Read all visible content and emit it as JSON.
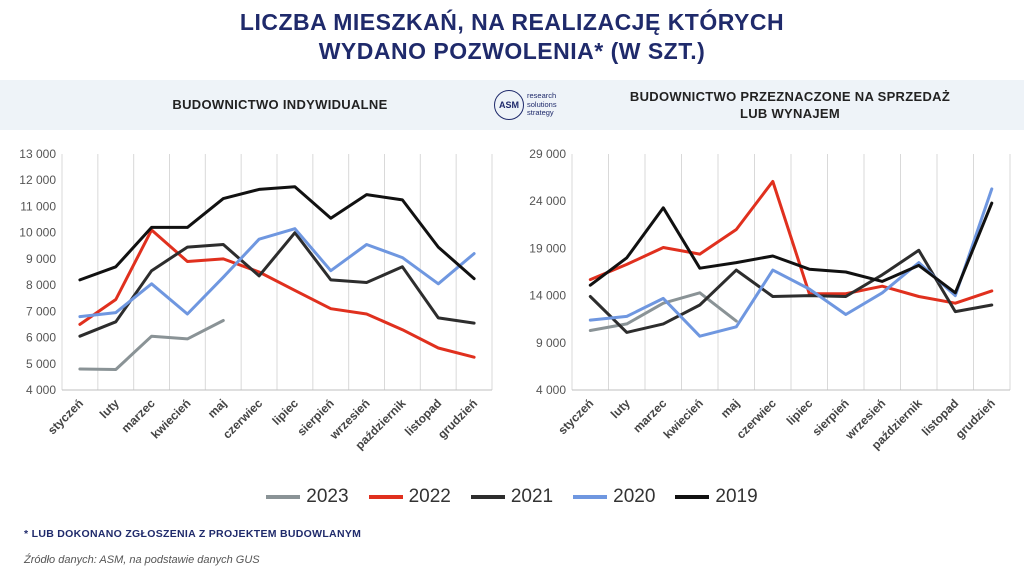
{
  "title_line1": "LICZBA MIESZKAŃ, NA REALIZACJĘ KTÓRYCH",
  "title_line2": "WYDANO POZWOLENIA* (W SZT.)",
  "logo": {
    "mark": "ASM",
    "line1": "research",
    "line2": "solutions",
    "line3": "strategy"
  },
  "footnote": "* LUB DOKONANO ZGŁOSZENIA Z PROJEKTEM BUDOWLANYM",
  "source": "Źródło danych: ASM, na podstawie danych GUS",
  "legend": [
    {
      "label": "2023",
      "color": "#8a9396"
    },
    {
      "label": "2022",
      "color": "#e0301e"
    },
    {
      "label": "2021",
      "color": "#2d2d2d"
    },
    {
      "label": "2020",
      "color": "#6f97e0"
    },
    {
      "label": "2019",
      "color": "#111111"
    }
  ],
  "chart_data": [
    {
      "type": "line",
      "title": "BUDOWNICTWO INDYWIDUALNE",
      "categories": [
        "styczeń",
        "luty",
        "marzec",
        "kwiecień",
        "maj",
        "czerwiec",
        "lipiec",
        "sierpień",
        "wrzesień",
        "październik",
        "listopad",
        "grudzień"
      ],
      "ylim": [
        4000,
        13000
      ],
      "yticks": [
        4000,
        5000,
        6000,
        7000,
        8000,
        9000,
        10000,
        11000,
        12000,
        13000
      ],
      "ytick_labels": [
        "4 000",
        "5 000",
        "6 000",
        "7 000",
        "8 000",
        "9 000",
        "10 000",
        "11 000",
        "12 000",
        "13 000"
      ],
      "grid": "vertical",
      "series": [
        {
          "name": "2023",
          "color": "#8a9396",
          "values": [
            4800,
            4780,
            6050,
            5950,
            6650,
            null,
            null,
            null,
            null,
            null,
            null,
            null
          ]
        },
        {
          "name": "2022",
          "color": "#e0301e",
          "values": [
            6500,
            7450,
            10100,
            8900,
            9000,
            8500,
            7800,
            7100,
            6900,
            6300,
            5600,
            5250
          ]
        },
        {
          "name": "2021",
          "color": "#2d2d2d",
          "values": [
            6050,
            6600,
            8550,
            9450,
            9550,
            8350,
            10000,
            8200,
            8100,
            8700,
            6750,
            6550
          ]
        },
        {
          "name": "2020",
          "color": "#6f97e0",
          "values": [
            6800,
            6950,
            8050,
            6900,
            8300,
            9750,
            10150,
            8550,
            9550,
            9050,
            8050,
            9200
          ]
        },
        {
          "name": "2019",
          "color": "#111111",
          "values": [
            8200,
            8700,
            10200,
            10200,
            11300,
            11650,
            11750,
            10550,
            11450,
            11250,
            9450,
            8250
          ]
        }
      ]
    },
    {
      "type": "line",
      "title_line1": "BUDOWNICTWO PRZEZNACZONE NA SPRZEDAŻ",
      "title_line2": "LUB WYNAJEM",
      "categories": [
        "styczeń",
        "luty",
        "marzec",
        "kwiecień",
        "maj",
        "czerwiec",
        "lipiec",
        "sierpień",
        "wrzesień",
        "październik",
        "listopad",
        "grudzień"
      ],
      "ylim": [
        4000,
        29000
      ],
      "yticks": [
        4000,
        9000,
        14000,
        19000,
        24000,
        29000
      ],
      "ytick_labels": [
        "4 000",
        "9 000",
        "14 000",
        "19 000",
        "24 000",
        "29 000"
      ],
      "grid": "vertical",
      "series": [
        {
          "name": "2023",
          "color": "#8a9396",
          "values": [
            10300,
            11000,
            13200,
            14300,
            11300,
            null,
            null,
            null,
            null,
            null,
            null,
            null
          ]
        },
        {
          "name": "2022",
          "color": "#e0301e",
          "values": [
            15700,
            17300,
            19100,
            18400,
            21000,
            26100,
            14200,
            14200,
            15000,
            13900,
            13200,
            14500
          ]
        },
        {
          "name": "2021",
          "color": "#2d2d2d",
          "values": [
            13900,
            10100,
            11000,
            13000,
            16700,
            13900,
            14000,
            13900,
            16200,
            18800,
            12300,
            13000
          ]
        },
        {
          "name": "2020",
          "color": "#6f97e0",
          "values": [
            11400,
            11800,
            13700,
            9700,
            10700,
            16700,
            14700,
            12000,
            14300,
            17500,
            14000,
            25300
          ]
        },
        {
          "name": "2019",
          "color": "#111111",
          "values": [
            15100,
            18000,
            23300,
            16900,
            17500,
            18200,
            16800,
            16500,
            15500,
            17200,
            14300,
            23800
          ]
        }
      ]
    }
  ]
}
